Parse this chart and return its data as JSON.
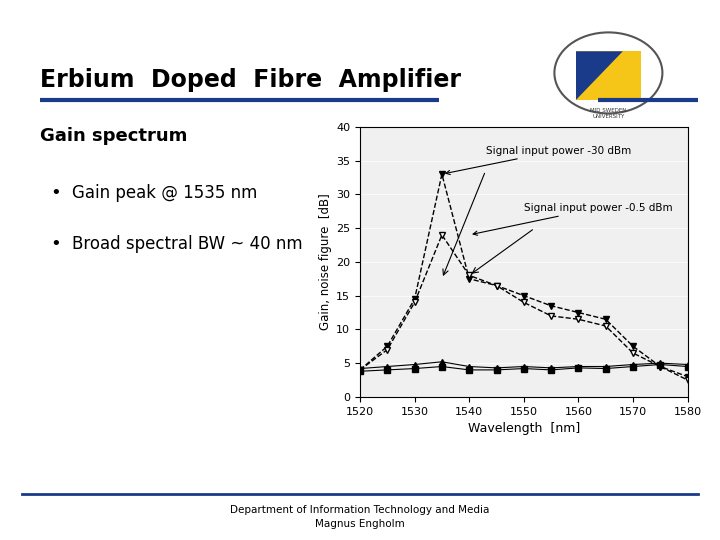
{
  "title": "Erbium  Doped  Fibre  Amplifier",
  "subtitle": "Gain spectrum",
  "bullet1": "Gain peak @ 1535 nm",
  "bullet2": "Broad spectral BW ~ 40 nm",
  "footer1": "Department of Information Technology and Media",
  "footer2": "Magnus Engholm",
  "title_color": "#000000",
  "header_line_color": "#1a3a8a",
  "footer_line_color": "#1a3a8a",
  "bg_color": "#ffffff",
  "wavelengths": [
    1520,
    1525,
    1530,
    1535,
    1540,
    1545,
    1550,
    1555,
    1560,
    1565,
    1570,
    1575,
    1580
  ],
  "gain_30dbm": [
    4.0,
    7.5,
    14.5,
    33.0,
    17.5,
    16.5,
    15.0,
    13.5,
    12.5,
    11.5,
    7.5,
    4.5,
    3.0
  ],
  "nf_30dbm": [
    4.2,
    4.5,
    4.8,
    5.2,
    4.5,
    4.3,
    4.5,
    4.3,
    4.5,
    4.5,
    4.8,
    5.0,
    4.8
  ],
  "gain_05dbm": [
    4.0,
    7.0,
    14.0,
    24.0,
    18.0,
    16.5,
    14.0,
    12.0,
    11.5,
    10.5,
    6.5,
    4.5,
    2.5
  ],
  "nf_05dbm": [
    3.8,
    4.0,
    4.2,
    4.5,
    4.0,
    4.0,
    4.2,
    4.0,
    4.3,
    4.2,
    4.5,
    4.8,
    4.5
  ],
  "xlabel": "Wavelength  [nm]",
  "ylabel": "Gain, noise figure  [dB]",
  "xlim": [
    1520,
    1580
  ],
  "ylim": [
    0,
    40
  ],
  "yticks": [
    0,
    5,
    10,
    15,
    20,
    25,
    30,
    35,
    40
  ],
  "xticks": [
    1520,
    1530,
    1540,
    1550,
    1560,
    1570,
    1580
  ],
  "label_30dbm": "Signal input power -30 dBm",
  "label_05dbm": "Signal input power -0.5 dBm",
  "plot_bg": "#f0f0f0",
  "line_color": "#000000"
}
